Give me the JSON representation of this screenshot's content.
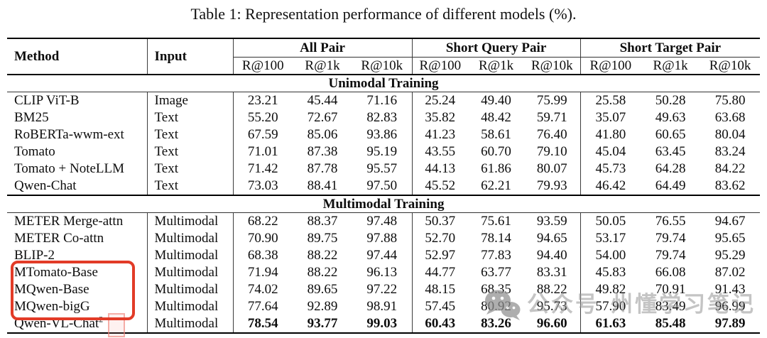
{
  "title": "Table 1: Representation performance of different models (%).",
  "table": {
    "col_headers": {
      "method": "Method",
      "input": "Input"
    },
    "groups": [
      {
        "label": "All Pair",
        "metrics": [
          "R@100",
          "R@1k",
          "R@10k"
        ]
      },
      {
        "label": "Short Query Pair",
        "metrics": [
          "R@100",
          "R@1k",
          "R@10k"
        ]
      },
      {
        "label": "Short Target Pair",
        "metrics": [
          "R@100",
          "R@1k",
          "R@10k"
        ]
      }
    ],
    "sections": [
      {
        "label": "Unimodal Training",
        "rows": [
          {
            "method": "CLIP ViT-B",
            "input": "Image",
            "values": [
              "23.21",
              "45.44",
              "71.16",
              "25.24",
              "49.40",
              "75.99",
              "25.58",
              "50.28",
              "75.80"
            ]
          },
          {
            "method": "BM25",
            "input": "Text",
            "values": [
              "55.20",
              "72.67",
              "82.83",
              "35.82",
              "48.42",
              "59.71",
              "35.07",
              "49.63",
              "63.68"
            ]
          },
          {
            "method": "RoBERTa-wwm-ext",
            "input": "Text",
            "values": [
              "67.59",
              "85.06",
              "93.86",
              "41.23",
              "58.61",
              "76.40",
              "41.80",
              "60.65",
              "80.04"
            ]
          },
          {
            "method": "Tomato",
            "input": "Text",
            "values": [
              "71.01",
              "87.38",
              "95.19",
              "43.55",
              "60.70",
              "79.10",
              "45.04",
              "63.45",
              "83.24"
            ]
          },
          {
            "method": "Tomato + NoteLLM",
            "input": "Text",
            "values": [
              "71.42",
              "87.78",
              "95.57",
              "44.13",
              "61.86",
              "80.07",
              "45.73",
              "64.28",
              "84.22"
            ]
          },
          {
            "method": "Qwen-Chat",
            "input": "Text",
            "values": [
              "73.03",
              "88.41",
              "97.50",
              "45.52",
              "62.21",
              "79.93",
              "46.42",
              "64.49",
              "83.62"
            ]
          }
        ]
      },
      {
        "label": "Multimodal Training",
        "rows": [
          {
            "method": "METER Merge-attn",
            "input": "Multimodal",
            "values": [
              "68.22",
              "88.37",
              "97.48",
              "50.37",
              "75.61",
              "93.59",
              "50.05",
              "76.55",
              "94.67"
            ]
          },
          {
            "method": "METER Co-attn",
            "input": "Multimodal",
            "values": [
              "70.90",
              "89.75",
              "97.88",
              "52.70",
              "78.14",
              "94.65",
              "53.17",
              "79.74",
              "95.65"
            ]
          },
          {
            "method": "BLIP-2",
            "input": "Multimodal",
            "values": [
              "68.38",
              "88.22",
              "97.44",
              "52.97",
              "77.83",
              "94.40",
              "54.00",
              "79.74",
              "95.29"
            ]
          },
          {
            "method": "MTomato-Base",
            "input": "Multimodal",
            "values": [
              "71.94",
              "88.22",
              "96.13",
              "44.77",
              "63.77",
              "83.31",
              "45.83",
              "66.08",
              "87.02"
            ]
          },
          {
            "method": "MQwen-Base",
            "input": "Multimodal",
            "values": [
              "74.02",
              "89.65",
              "97.22",
              "48.15",
              "68.35",
              "88.22",
              "49.82",
              "70.91",
              "91.43"
            ]
          },
          {
            "method": "MQwen-bigG",
            "input": "Multimodal",
            "values": [
              "77.64",
              "92.89",
              "98.91",
              "57.45",
              "80.92",
              "95.73",
              "57.90",
              "83.49",
              "96.99"
            ]
          },
          {
            "method": "Qwen-VL-Chat",
            "sup": "2",
            "input": "Multimodal",
            "bold": true,
            "values": [
              "78.54",
              "93.77",
              "99.03",
              "60.43",
              "83.26",
              "96.60",
              "61.63",
              "85.48",
              "97.89"
            ]
          }
        ]
      }
    ]
  },
  "annotations": {
    "red_box": {
      "color": "#e23b27",
      "highlighted_methods": [
        "MTomato-Base",
        "MQwen-Base",
        "MQwen-bigG"
      ]
    },
    "pink_box": {
      "color": "#ee8076",
      "target": "footnote-marker-2"
    }
  },
  "watermark": {
    "icon": "wechat-icon",
    "prefix": "公众号",
    "text": "州懂学习笔记",
    "color": "#949494"
  }
}
